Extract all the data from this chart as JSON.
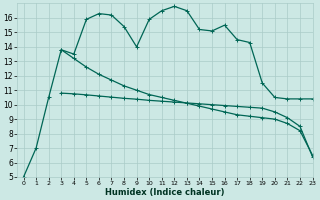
{
  "xlabel": "Humidex (Indice chaleur)",
  "bg_color": "#cce8e4",
  "grid_color": "#aaccc8",
  "line_color": "#006655",
  "xlim": [
    -0.5,
    23
  ],
  "ylim": [
    5,
    17
  ],
  "ytop_clip": 16.2,
  "x_ticks": [
    0,
    1,
    2,
    3,
    4,
    5,
    6,
    7,
    8,
    9,
    10,
    11,
    12,
    13,
    14,
    15,
    16,
    17,
    18,
    19,
    20,
    21,
    22,
    23
  ],
  "y_ticks": [
    5,
    6,
    7,
    8,
    9,
    10,
    11,
    12,
    13,
    14,
    15,
    16
  ],
  "line1_x": [
    0,
    1,
    2,
    3,
    4,
    5,
    6,
    7,
    8,
    9,
    10,
    11,
    12,
    13,
    14,
    15,
    16,
    17,
    18,
    19,
    20,
    21,
    22,
    23
  ],
  "line1_y": [
    5,
    7,
    10.5,
    13.8,
    13.5,
    15.9,
    16.3,
    16.2,
    15.4,
    14.0,
    15.9,
    16.5,
    16.8,
    16.5,
    15.2,
    15.1,
    15.5,
    14.5,
    14.3,
    11.5,
    10.5,
    10.4,
    10.4,
    10.4
  ],
  "line2_x": [
    3,
    4,
    5,
    6,
    7,
    8,
    9,
    10,
    11,
    12,
    13,
    14,
    15,
    16,
    17,
    18,
    19,
    20,
    21,
    22,
    23
  ],
  "line2_y": [
    13.8,
    13.2,
    12.6,
    12.1,
    11.7,
    11.3,
    11.0,
    10.7,
    10.5,
    10.3,
    10.1,
    9.9,
    9.7,
    9.5,
    9.3,
    9.2,
    9.1,
    9.0,
    8.7,
    8.2,
    6.5
  ],
  "line3_x": [
    3,
    4,
    5,
    6,
    7,
    8,
    9,
    10,
    11,
    12,
    13,
    14,
    15,
    16,
    17,
    18,
    19,
    20,
    21,
    22,
    23
  ],
  "line3_y": [
    10.8,
    10.75,
    10.68,
    10.6,
    10.52,
    10.44,
    10.38,
    10.3,
    10.24,
    10.18,
    10.12,
    10.06,
    10.0,
    9.94,
    9.88,
    9.82,
    9.76,
    9.5,
    9.1,
    8.5,
    6.4
  ]
}
